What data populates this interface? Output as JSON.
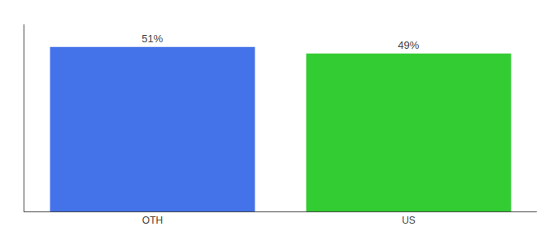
{
  "chart_data": {
    "type": "bar",
    "categories": [
      "OTH",
      "US"
    ],
    "values": [
      51,
      49
    ],
    "value_labels": [
      "51%",
      "49%"
    ],
    "colors": [
      "#4472e8",
      "#33cc33"
    ],
    "ylim": [
      0,
      58
    ],
    "yticks": [],
    "grid": false,
    "data_labels": true,
    "tick_labels": "x"
  }
}
